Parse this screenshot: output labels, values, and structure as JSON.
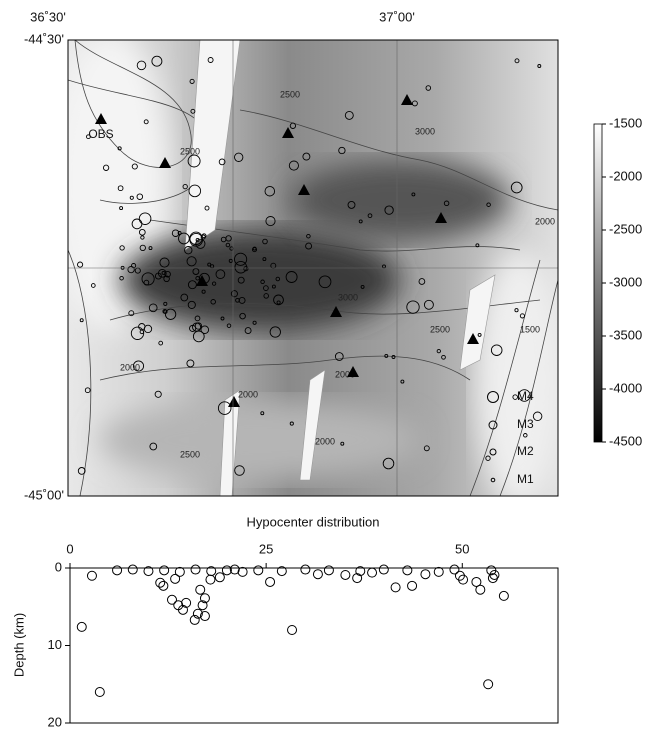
{
  "map": {
    "lon_labels": [
      "36˚30'",
      "37˚00'"
    ],
    "lat_labels": [
      "-44˚30'",
      "-45˚00'"
    ],
    "station_label": "OBS",
    "contour_labels": [
      "2500",
      "3000",
      "2500",
      "2000",
      "3000",
      "2500",
      "2000",
      "2000",
      "1500",
      "2000",
      "2000",
      "2500"
    ],
    "colorbar": {
      "lim": [
        -4500,
        -1500
      ],
      "ticks": [
        -1500,
        -2000,
        -2500,
        -3000,
        -3500,
        -4000,
        -4500
      ]
    },
    "legend": [
      "M4",
      "M3",
      "M2",
      "M1"
    ]
  },
  "chart_data": {
    "type": "scatter",
    "title": "Hypocenter distribution",
    "y_label": "Depth (km)",
    "x": [
      1.5,
      2.8,
      3.8,
      11.5,
      11.9,
      13.4,
      13.8,
      14.4,
      14.8,
      13.0,
      16.3,
      17.2,
      16.9,
      17.2,
      15.9,
      16.6,
      17.9,
      19.1,
      25.5,
      28.3,
      31.6,
      35.1,
      36.6,
      38.5,
      41.5,
      43.6,
      45.3,
      49.7,
      50.1,
      51.8,
      52.3,
      53.3,
      53.9,
      54.1,
      55.3,
      53.7,
      6,
      8,
      10,
      12,
      14,
      16,
      18,
      20,
      21,
      22,
      24,
      27,
      30,
      33,
      37,
      40,
      43,
      47,
      49
    ],
    "values": [
      7.6,
      1.0,
      16.0,
      1.9,
      2.3,
      1.4,
      4.8,
      5.4,
      4.5,
      4.1,
      5.9,
      3.9,
      4.8,
      6.2,
      6.7,
      2.8,
      1.5,
      1.2,
      1.8,
      8.0,
      0.8,
      0.9,
      1.3,
      0.6,
      2.5,
      2.3,
      0.8,
      1.0,
      1.5,
      1.8,
      2.8,
      15.0,
      1.3,
      0.9,
      3.6,
      0.3,
      0.3,
      0.2,
      0.4,
      0.3,
      0.5,
      0.2,
      0.4,
      0.3,
      0.2,
      0.5,
      0.3,
      0.4,
      0.2,
      0.3,
      0.4,
      0.2,
      0.3,
      0.5,
      0.2
    ],
    "xlim": [
      0,
      62.2
    ],
    "ylim": [
      0,
      20
    ],
    "y_inverted": true,
    "xticks": [
      0,
      25,
      50
    ],
    "yticks": [
      0,
      10,
      20
    ],
    "color": "#000000"
  }
}
